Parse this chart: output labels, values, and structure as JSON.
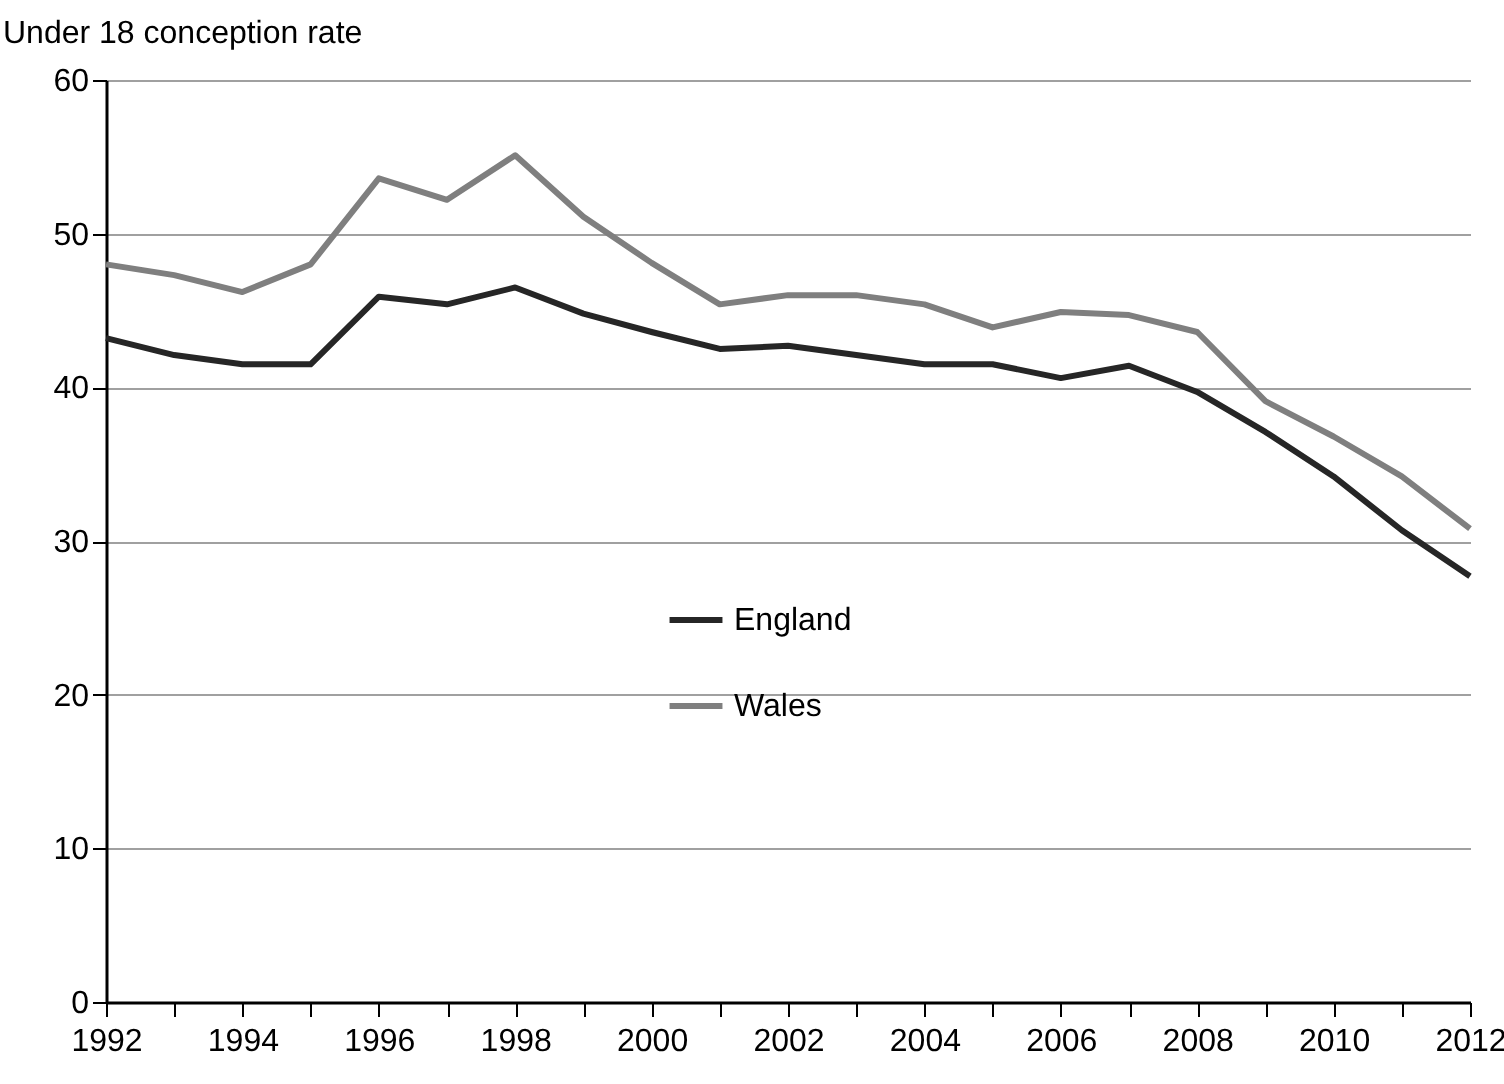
{
  "chart_data": {
    "type": "line",
    "ylabel": "Under 18 conception rate",
    "x": [
      1992,
      1993,
      1994,
      1995,
      1996,
      1997,
      1998,
      1999,
      2000,
      2001,
      2002,
      2003,
      2004,
      2005,
      2006,
      2007,
      2008,
      2009,
      2010,
      2011,
      2012
    ],
    "series": [
      {
        "name": "England",
        "color": "#262626",
        "values": [
          43.2,
          42.1,
          41.5,
          41.5,
          45.9,
          45.4,
          46.5,
          44.8,
          43.6,
          42.5,
          42.7,
          42.1,
          41.5,
          41.5,
          40.6,
          41.4,
          39.7,
          37.1,
          34.2,
          30.7,
          27.7
        ]
      },
      {
        "name": "Wales",
        "color": "#7f7f7f",
        "values": [
          48.0,
          47.3,
          46.2,
          48.0,
          53.6,
          52.2,
          55.1,
          51.1,
          48.1,
          45.4,
          46.0,
          46.0,
          45.4,
          43.9,
          44.9,
          44.7,
          43.6,
          39.1,
          36.8,
          34.2,
          30.8
        ]
      }
    ],
    "xlim": [
      1992,
      2012
    ],
    "xticks": [
      1992,
      {
        "value": 1993,
        "label": null
      },
      1994,
      {
        "value": 1995,
        "label": null
      },
      1996,
      {
        "value": 1997,
        "label": null
      },
      1998,
      {
        "value": 1999,
        "label": null
      },
      2000,
      {
        "value": 2001,
        "label": null
      },
      2002,
      {
        "value": 2003,
        "label": null
      },
      2004,
      {
        "value": 2005,
        "label": null
      },
      2006,
      {
        "value": 2007,
        "label": null
      },
      2008,
      {
        "value": 2009,
        "label": null
      },
      2010,
      {
        "value": 2011,
        "label": null
      },
      2012
    ],
    "ylim": [
      0,
      60
    ],
    "yticks": [
      0,
      10,
      20,
      30,
      40,
      50,
      60
    ],
    "grid": "y",
    "legend": "center",
    "marker": "none",
    "line_style": "solid"
  }
}
